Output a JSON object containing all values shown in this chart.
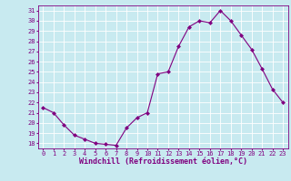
{
  "x": [
    0,
    1,
    2,
    3,
    4,
    5,
    6,
    7,
    8,
    9,
    10,
    11,
    12,
    13,
    14,
    15,
    16,
    17,
    18,
    19,
    20,
    21,
    22,
    23
  ],
  "y": [
    21.5,
    21.0,
    19.8,
    18.8,
    18.4,
    18.0,
    17.9,
    17.8,
    19.5,
    20.5,
    21.0,
    24.8,
    25.0,
    27.5,
    29.4,
    30.0,
    29.8,
    31.0,
    30.0,
    28.6,
    27.2,
    25.3,
    23.3,
    22.0
  ],
  "line_color": "#800080",
  "marker": "D",
  "marker_size": 2,
  "bg_color": "#c8eaf0",
  "grid_color": "#ffffff",
  "xlabel": "Windchill (Refroidissement éolien,°C)",
  "xlabel_color": "#800080",
  "ylabel_ticks": [
    18,
    19,
    20,
    21,
    22,
    23,
    24,
    25,
    26,
    27,
    28,
    29,
    30,
    31
  ],
  "ylim": [
    17.5,
    31.5
  ],
  "xlim": [
    -0.5,
    23.5
  ],
  "tick_color": "#800080",
  "tick_fontsize": 5,
  "xlabel_fontsize": 6,
  "linewidth": 0.8
}
